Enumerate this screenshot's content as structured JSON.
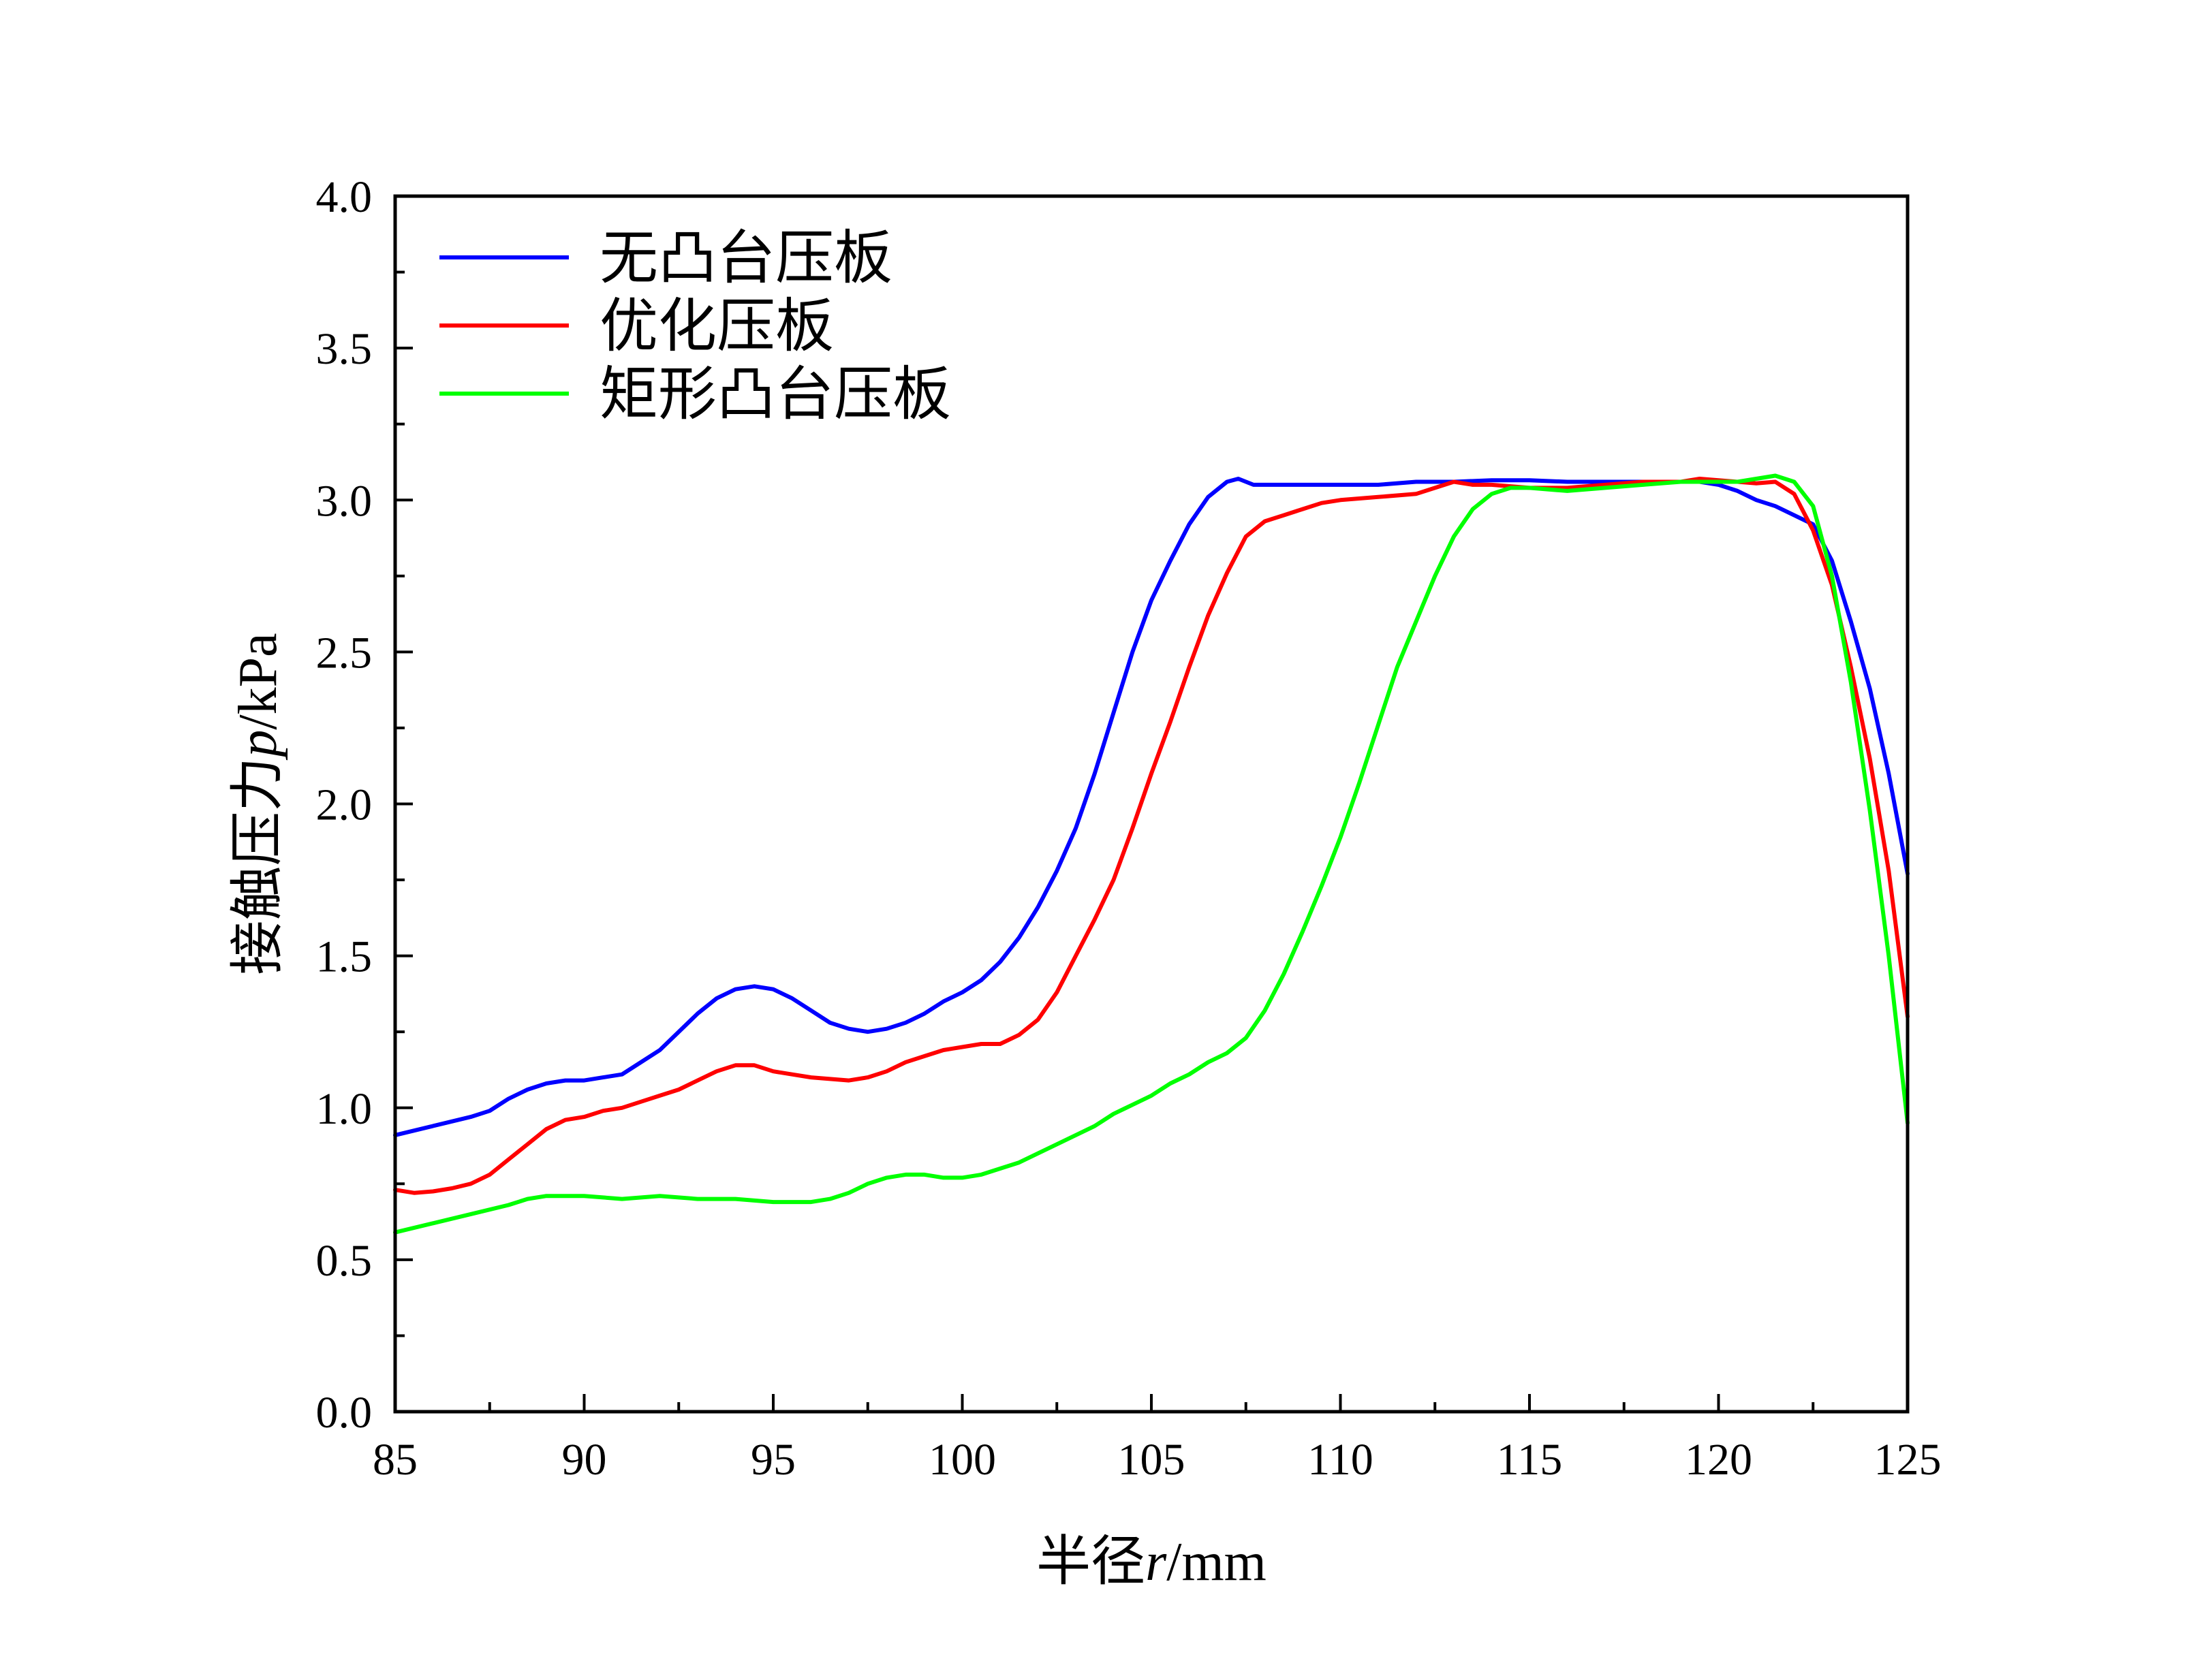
{
  "chart_data": {
    "type": "line",
    "xlabel_prefix": "半径",
    "xlabel_var": "r",
    "xlabel_unit": "/mm",
    "ylabel_prefix": "接触压力",
    "ylabel_var": "p",
    "ylabel_unit": "/kPa",
    "xlim": [
      85,
      125
    ],
    "ylim": [
      0.0,
      4.0
    ],
    "xticks": [
      "85",
      "90",
      "95",
      "100",
      "105",
      "110",
      "115",
      "120",
      "125"
    ],
    "yticks": [
      "0.0",
      "0.5",
      "1.0",
      "1.5",
      "2.0",
      "2.5",
      "3.0",
      "3.5",
      "4.0"
    ],
    "grid": false,
    "legend_position": "top-left",
    "series": [
      {
        "name": "无凸台压板",
        "color": "#0000ff",
        "points": [
          [
            85,
            0.91
          ],
          [
            86,
            0.94
          ],
          [
            87,
            0.97
          ],
          [
            87.5,
            0.99
          ],
          [
            88,
            1.03
          ],
          [
            88.5,
            1.06
          ],
          [
            89,
            1.08
          ],
          [
            89.5,
            1.09
          ],
          [
            90,
            1.09
          ],
          [
            90.5,
            1.1
          ],
          [
            91,
            1.11
          ],
          [
            91.5,
            1.15
          ],
          [
            92,
            1.19
          ],
          [
            92.5,
            1.25
          ],
          [
            93,
            1.31
          ],
          [
            93.5,
            1.36
          ],
          [
            94,
            1.39
          ],
          [
            94.5,
            1.4
          ],
          [
            95,
            1.39
          ],
          [
            95.5,
            1.36
          ],
          [
            96,
            1.32
          ],
          [
            96.5,
            1.28
          ],
          [
            97,
            1.26
          ],
          [
            97.5,
            1.25
          ],
          [
            98,
            1.26
          ],
          [
            98.5,
            1.28
          ],
          [
            99,
            1.31
          ],
          [
            99.5,
            1.35
          ],
          [
            100,
            1.38
          ],
          [
            100.5,
            1.42
          ],
          [
            101,
            1.48
          ],
          [
            101.5,
            1.56
          ],
          [
            102,
            1.66
          ],
          [
            102.5,
            1.78
          ],
          [
            103,
            1.92
          ],
          [
            103.5,
            2.1
          ],
          [
            104,
            2.3
          ],
          [
            104.5,
            2.5
          ],
          [
            105,
            2.67
          ],
          [
            105.5,
            2.8
          ],
          [
            106,
            2.92
          ],
          [
            106.5,
            3.01
          ],
          [
            107,
            3.06
          ],
          [
            107.3,
            3.07
          ],
          [
            107.7,
            3.05
          ],
          [
            108,
            3.05
          ],
          [
            109,
            3.05
          ],
          [
            110,
            3.05
          ],
          [
            111,
            3.05
          ],
          [
            112,
            3.06
          ],
          [
            113,
            3.06
          ],
          [
            114,
            3.065
          ],
          [
            115,
            3.065
          ],
          [
            116,
            3.06
          ],
          [
            117,
            3.06
          ],
          [
            118,
            3.06
          ],
          [
            119,
            3.06
          ],
          [
            119.5,
            3.06
          ],
          [
            120,
            3.05
          ],
          [
            120.5,
            3.03
          ],
          [
            121,
            3.0
          ],
          [
            121.5,
            2.98
          ],
          [
            122,
            2.95
          ],
          [
            122.5,
            2.92
          ],
          [
            123,
            2.8
          ],
          [
            123.5,
            2.6
          ],
          [
            124,
            2.38
          ],
          [
            124.5,
            2.1
          ],
          [
            125,
            1.77
          ]
        ]
      },
      {
        "name": "优化压板",
        "color": "#ff0000",
        "points": [
          [
            85,
            0.73
          ],
          [
            85.5,
            0.72
          ],
          [
            86,
            0.725
          ],
          [
            86.5,
            0.735
          ],
          [
            87,
            0.75
          ],
          [
            87.5,
            0.78
          ],
          [
            88,
            0.83
          ],
          [
            88.5,
            0.88
          ],
          [
            89,
            0.93
          ],
          [
            89.5,
            0.96
          ],
          [
            90,
            0.97
          ],
          [
            90.5,
            0.99
          ],
          [
            91,
            1.0
          ],
          [
            91.5,
            1.02
          ],
          [
            92,
            1.04
          ],
          [
            92.5,
            1.06
          ],
          [
            93,
            1.09
          ],
          [
            93.5,
            1.12
          ],
          [
            94,
            1.14
          ],
          [
            94.5,
            1.14
          ],
          [
            95,
            1.12
          ],
          [
            95.5,
            1.11
          ],
          [
            96,
            1.1
          ],
          [
            96.5,
            1.095
          ],
          [
            97,
            1.09
          ],
          [
            97.5,
            1.1
          ],
          [
            98,
            1.12
          ],
          [
            98.5,
            1.15
          ],
          [
            99,
            1.17
          ],
          [
            99.5,
            1.19
          ],
          [
            100,
            1.2
          ],
          [
            100.5,
            1.21
          ],
          [
            101,
            1.21
          ],
          [
            101.5,
            1.24
          ],
          [
            102,
            1.29
          ],
          [
            102.5,
            1.38
          ],
          [
            103,
            1.5
          ],
          [
            103.5,
            1.62
          ],
          [
            104,
            1.75
          ],
          [
            104.5,
            1.92
          ],
          [
            105,
            2.1
          ],
          [
            105.5,
            2.27
          ],
          [
            106,
            2.45
          ],
          [
            106.5,
            2.62
          ],
          [
            107,
            2.76
          ],
          [
            107.5,
            2.88
          ],
          [
            108,
            2.93
          ],
          [
            108.5,
            2.95
          ],
          [
            109,
            2.97
          ],
          [
            109.5,
            2.99
          ],
          [
            110,
            3.0
          ],
          [
            111,
            3.01
          ],
          [
            112,
            3.02
          ],
          [
            112.5,
            3.04
          ],
          [
            113,
            3.06
          ],
          [
            113.5,
            3.05
          ],
          [
            114,
            3.05
          ],
          [
            115,
            3.04
          ],
          [
            116,
            3.04
          ],
          [
            117,
            3.05
          ],
          [
            118,
            3.06
          ],
          [
            119,
            3.06
          ],
          [
            119.5,
            3.07
          ],
          [
            120,
            3.065
          ],
          [
            120.5,
            3.06
          ],
          [
            121,
            3.055
          ],
          [
            121.5,
            3.06
          ],
          [
            122,
            3.02
          ],
          [
            122.5,
            2.9
          ],
          [
            123,
            2.72
          ],
          [
            123.5,
            2.45
          ],
          [
            124,
            2.15
          ],
          [
            124.5,
            1.78
          ],
          [
            125,
            1.3
          ]
        ]
      },
      {
        "name": "矩形凸台压板",
        "color": "#00ff00",
        "points": [
          [
            85,
            0.59
          ],
          [
            86,
            0.62
          ],
          [
            87,
            0.65
          ],
          [
            88,
            0.68
          ],
          [
            88.5,
            0.7
          ],
          [
            89,
            0.71
          ],
          [
            89.5,
            0.71
          ],
          [
            90,
            0.71
          ],
          [
            91,
            0.7
          ],
          [
            92,
            0.71
          ],
          [
            93,
            0.7
          ],
          [
            94,
            0.7
          ],
          [
            95,
            0.69
          ],
          [
            95.5,
            0.69
          ],
          [
            96,
            0.69
          ],
          [
            96.5,
            0.7
          ],
          [
            97,
            0.72
          ],
          [
            97.5,
            0.75
          ],
          [
            98,
            0.77
          ],
          [
            98.5,
            0.78
          ],
          [
            99,
            0.78
          ],
          [
            99.5,
            0.77
          ],
          [
            100,
            0.77
          ],
          [
            100.5,
            0.78
          ],
          [
            101,
            0.8
          ],
          [
            101.5,
            0.82
          ],
          [
            102,
            0.85
          ],
          [
            102.5,
            0.88
          ],
          [
            103,
            0.91
          ],
          [
            103.5,
            0.94
          ],
          [
            104,
            0.98
          ],
          [
            104.5,
            1.01
          ],
          [
            105,
            1.04
          ],
          [
            105.5,
            1.08
          ],
          [
            106,
            1.11
          ],
          [
            106.5,
            1.15
          ],
          [
            107,
            1.18
          ],
          [
            107.5,
            1.23
          ],
          [
            108,
            1.32
          ],
          [
            108.5,
            1.44
          ],
          [
            109,
            1.58
          ],
          [
            109.5,
            1.73
          ],
          [
            110,
            1.89
          ],
          [
            110.5,
            2.07
          ],
          [
            111,
            2.26
          ],
          [
            111.5,
            2.45
          ],
          [
            112,
            2.6
          ],
          [
            112.5,
            2.75
          ],
          [
            113,
            2.88
          ],
          [
            113.5,
            2.97
          ],
          [
            114,
            3.02
          ],
          [
            114.5,
            3.04
          ],
          [
            115,
            3.04
          ],
          [
            116,
            3.03
          ],
          [
            117,
            3.04
          ],
          [
            118,
            3.05
          ],
          [
            119,
            3.06
          ],
          [
            120,
            3.06
          ],
          [
            120.5,
            3.06
          ],
          [
            121,
            3.07
          ],
          [
            121.5,
            3.08
          ],
          [
            122,
            3.06
          ],
          [
            122.5,
            2.98
          ],
          [
            123,
            2.75
          ],
          [
            123.5,
            2.4
          ],
          [
            124,
            1.98
          ],
          [
            124.5,
            1.5
          ],
          [
            125,
            0.95
          ]
        ]
      }
    ]
  }
}
